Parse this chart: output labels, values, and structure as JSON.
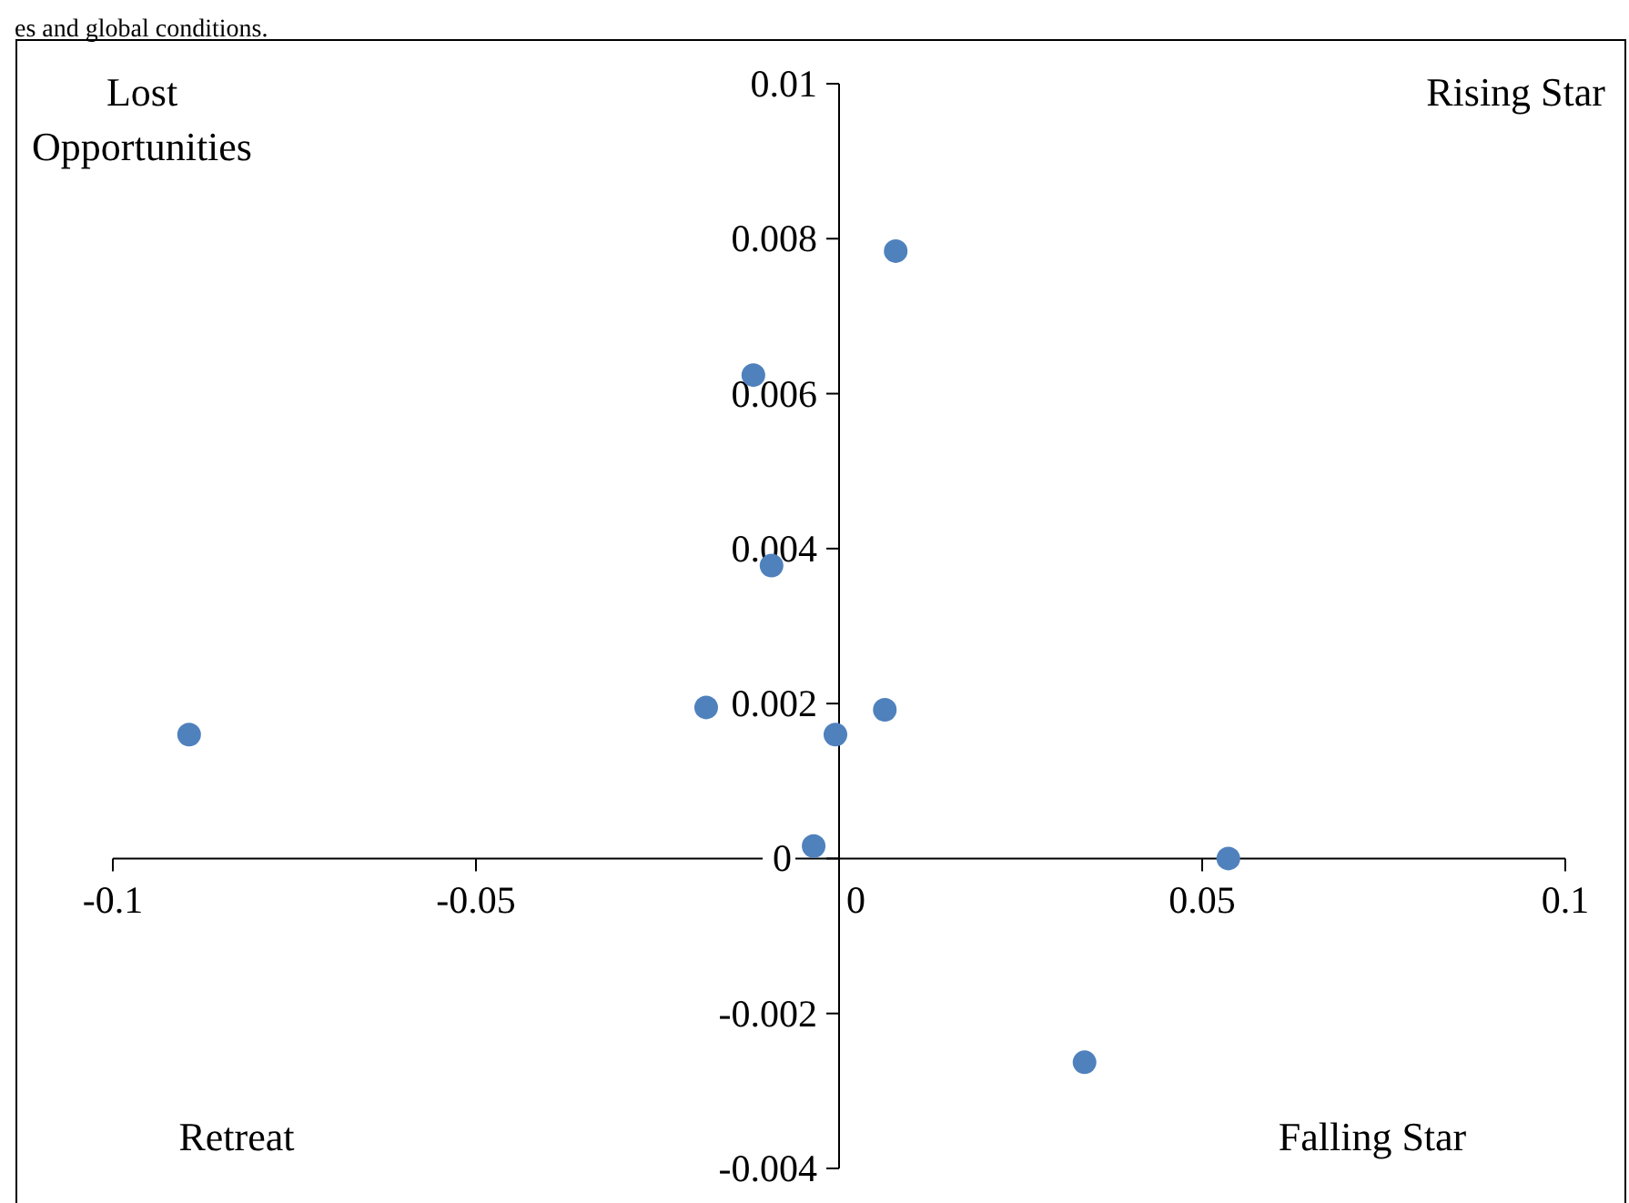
{
  "chart_data": {
    "type": "scatter",
    "x": [
      -0.0895,
      -0.0183,
      -0.0118,
      -0.0093,
      -0.0035,
      -0.0005,
      0.0063,
      0.0078,
      0.0338,
      0.0536
    ],
    "values": [
      0.0016,
      0.00195,
      0.00624,
      0.00378,
      0.00016,
      0.0016,
      0.00192,
      0.00784,
      -0.00263,
      0
    ],
    "color": "#4f81bd",
    "marker": "circle",
    "grid": false,
    "xlim": [
      -0.1,
      0.1
    ],
    "xticks": [
      -0.1,
      -0.05,
      0,
      0.05,
      0.1
    ],
    "ylim": [
      -0.004,
      0.01
    ],
    "yticks": [
      -0.004,
      -0.002,
      0,
      0.002,
      0.004,
      0.006,
      0.008,
      0.01
    ],
    "annotations": [
      "es and global conditions.",
      "Lost Opportunities",
      "Rising Star",
      "Retreat",
      "Falling Star"
    ]
  }
}
